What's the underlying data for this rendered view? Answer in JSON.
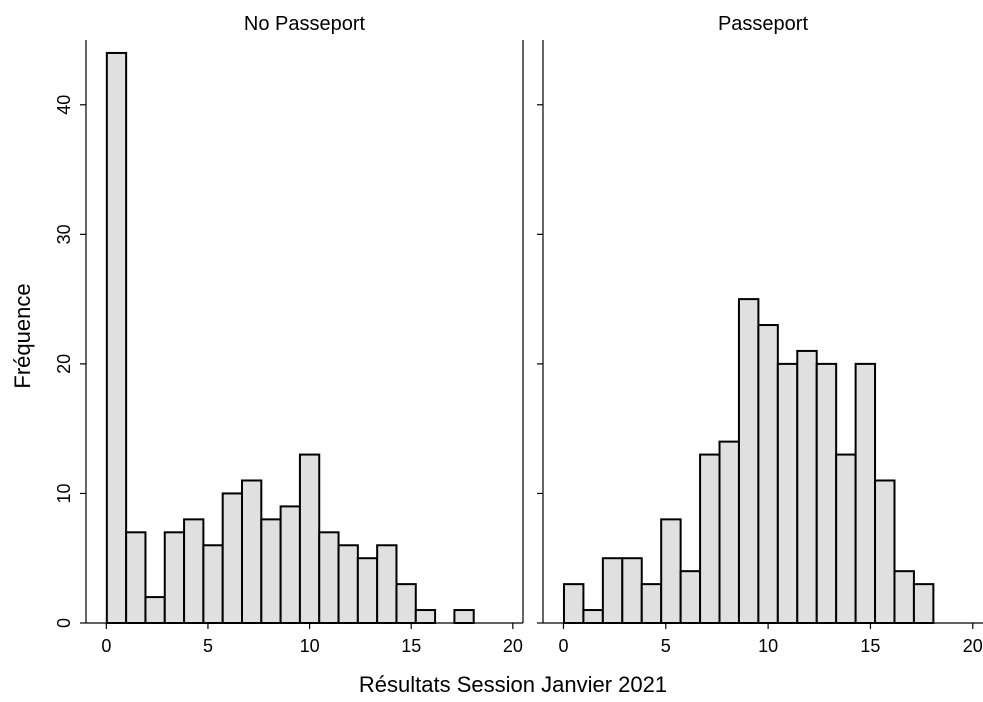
{
  "chart_data": {
    "type": "bar",
    "layout": "histogram-facets",
    "xlabel": "Résultats Session Janvier 2021",
    "ylabel": "Fréquence",
    "xlim": [
      -1,
      20.5
    ],
    "ylim": [
      0,
      45
    ],
    "xticks": [
      0,
      5,
      10,
      15,
      20
    ],
    "yticks": [
      0,
      10,
      20,
      30,
      40
    ],
    "bin_width": 0.95,
    "bar_fill": "#e0e0e0",
    "bar_stroke": "#000000",
    "grid": false,
    "panels": [
      {
        "title": "No Passeport",
        "x": [
          0.5,
          1.45,
          2.4,
          3.35,
          4.3,
          5.25,
          6.2,
          7.15,
          8.1,
          9.05,
          10.0,
          10.95,
          11.9,
          12.85,
          13.8,
          14.75,
          15.7,
          16.65,
          17.6
        ],
        "values": [
          44,
          7,
          2,
          7,
          8,
          6,
          10,
          11,
          8,
          9,
          13,
          7,
          6,
          5,
          6,
          3,
          1,
          0,
          1
        ]
      },
      {
        "title": "Passeport",
        "x": [
          0.5,
          1.45,
          2.4,
          3.35,
          4.3,
          5.25,
          6.2,
          7.15,
          8.1,
          9.05,
          10.0,
          10.95,
          11.9,
          12.85,
          13.8,
          14.75,
          15.7,
          16.65,
          17.6
        ],
        "values": [
          3,
          1,
          5,
          5,
          3,
          8,
          4,
          13,
          14,
          25,
          23,
          20,
          21,
          20,
          13,
          20,
          11,
          4,
          3
        ]
      }
    ]
  }
}
